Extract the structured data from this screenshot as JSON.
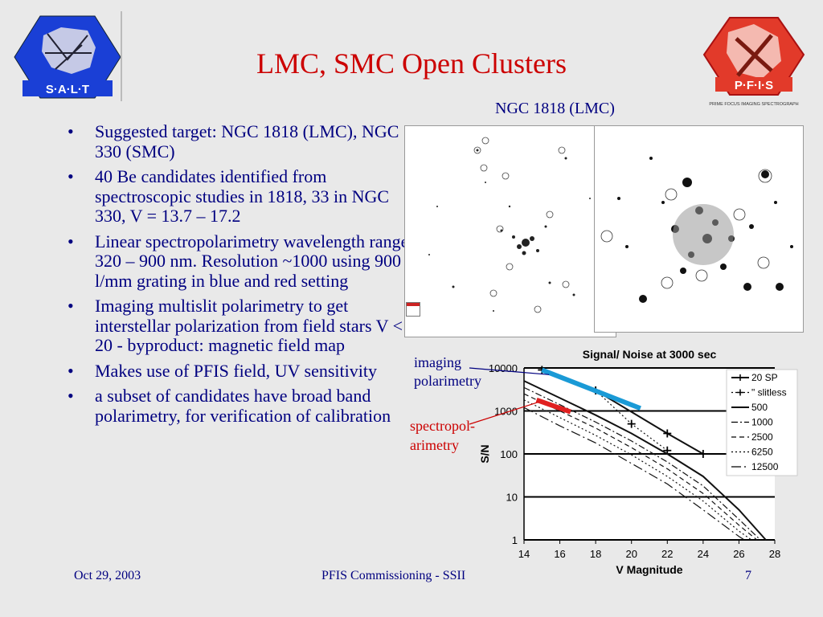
{
  "slide": {
    "title": "LMC, SMC Open Clusters",
    "image_caption": "NGC 1818 (LMC)",
    "bullets": [
      "Suggested target: NGC 1818 (LMC), NGC 330 (SMC)",
      "40 Be candidates identified from spectroscopic studies in 1818, 33 in NGC 330, V = 13.7 – 17.2",
      "Linear spectropolarimetry wavelength range 320 – 900 nm. Resolution ~1000 using 900 l/mm grating in blue and red setting",
      "Imaging multislit polarimetry to get interstellar polarization from field stars V < 20 - byproduct: magnetic field map",
      "Makes use of PFIS field, UV sensitivity",
      "a subset of candidates have broad band polarimetry, for verification of calibration"
    ],
    "footer": {
      "date": "Oct 29, 2003",
      "center": "PFIS Commissioning - SSII",
      "page": "7"
    },
    "logos": {
      "left": "S·A·L·T",
      "right": "P·F·I·S",
      "right_sub": "PRIME FOCUS IMAGING SPECTROGRAPH"
    },
    "annotations": {
      "imaging": [
        "imaging",
        "polarimetry"
      ],
      "spectropol": [
        "spectropol-",
        "arimetry"
      ]
    },
    "colors": {
      "title": "#cc0000",
      "text": "#000080",
      "background": "#e9e9e9",
      "imaging_band": "#1a9ad6",
      "spectropol_band": "#e02020"
    }
  },
  "chart_data": {
    "type": "line",
    "title": "Signal/ Noise at 3000 sec",
    "xlabel": "V Magnitude",
    "ylabel": "S/N",
    "xlim": [
      14,
      28
    ],
    "ylim": [
      1,
      10000
    ],
    "y_scale": "log",
    "x_ticks": [
      "14",
      "16",
      "18",
      "20",
      "22",
      "24",
      "26",
      "28"
    ],
    "y_ticks": [
      "1",
      "10",
      "100",
      "1000",
      "10000"
    ],
    "legend_position": "right",
    "series": [
      {
        "name": "20 SP",
        "style": "solid-plus",
        "x": [
          15,
          18,
          22,
          24
        ],
        "y": [
          9000,
          3000,
          300,
          100
        ]
      },
      {
        "name": "\" slitless",
        "style": "dotted-star",
        "x": [
          18,
          20,
          22
        ],
        "y": [
          3000,
          500,
          120
        ]
      },
      {
        "name": "500",
        "style": "solid",
        "x": [
          14,
          16,
          18,
          20,
          22,
          24,
          26,
          27.5
        ],
        "y": [
          5000,
          2000,
          800,
          300,
          100,
          30,
          5,
          1
        ]
      },
      {
        "name": "1000",
        "style": "dash-dot",
        "x": [
          14,
          16,
          18,
          20,
          22,
          24,
          26,
          27.2
        ],
        "y": [
          3500,
          1400,
          550,
          200,
          65,
          18,
          3,
          1
        ]
      },
      {
        "name": "2500",
        "style": "dashed",
        "x": [
          14,
          16,
          18,
          20,
          22,
          24,
          26,
          27
        ],
        "y": [
          2500,
          1000,
          400,
          140,
          45,
          12,
          2.2,
          1
        ]
      },
      {
        "name": "6250",
        "style": "dotted",
        "x": [
          14,
          16,
          18,
          20,
          22,
          24,
          26,
          26.7
        ],
        "y": [
          1800,
          700,
          270,
          95,
          30,
          8,
          1.6,
          1
        ]
      },
      {
        "name": "12500",
        "style": "long-dash-dot",
        "x": [
          14,
          16,
          18,
          20,
          22,
          24,
          26,
          26.3
        ],
        "y": [
          1200,
          450,
          180,
          60,
          20,
          5,
          1.2,
          1
        ]
      }
    ],
    "highlights": [
      {
        "name": "imaging polarimetry",
        "x": [
          15,
          20.5
        ],
        "y": [
          9000,
          1150
        ]
      },
      {
        "name": "spectropolarimetry",
        "x": [
          14.7,
          16.6
        ],
        "y": [
          1800,
          950
        ]
      }
    ]
  }
}
